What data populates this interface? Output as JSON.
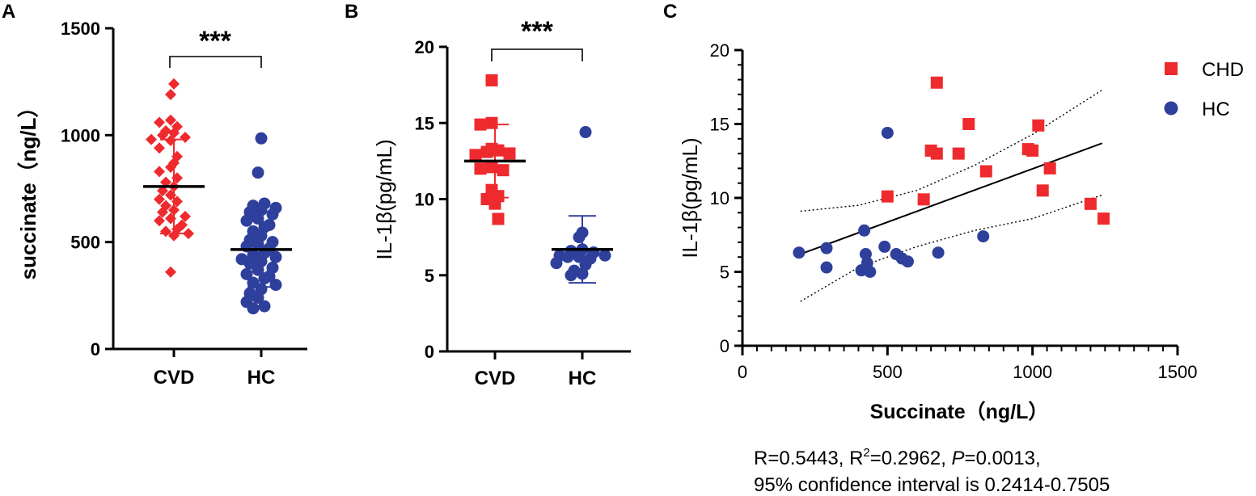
{
  "colors": {
    "cvd": "#ee2a2e",
    "hc": "#2e3f9c",
    "axis": "#000000"
  },
  "chart_data": [
    {
      "panel": "A",
      "type": "scatter",
      "subtype": "dot-plot with mean and SD",
      "title": "",
      "ylabel": "succinate（ng/L）",
      "xlabel": "",
      "ylim": [
        0,
        1500
      ],
      "yticks": [
        0,
        500,
        1000,
        1500
      ],
      "categories": [
        "CVD",
        "HC"
      ],
      "significance": "***",
      "series": [
        {
          "name": "CVD",
          "marker": "diamond",
          "mean": 760,
          "sd_low": 540,
          "sd_high": 980,
          "values": [
            1240,
            1190,
            1070,
            1060,
            1040,
            1020,
            1010,
            1000,
            990,
            980,
            975,
            940,
            900,
            870,
            850,
            830,
            800,
            780,
            760,
            740,
            720,
            700,
            690,
            670,
            650,
            640,
            620,
            610,
            600,
            580,
            560,
            550,
            540,
            530,
            360
          ]
        },
        {
          "name": "HC",
          "marker": "circle",
          "mean": 465,
          "sd_low": 290,
          "sd_high": 640,
          "values": [
            985,
            825,
            680,
            670,
            660,
            650,
            640,
            630,
            610,
            600,
            580,
            570,
            550,
            530,
            510,
            500,
            490,
            480,
            470,
            450,
            440,
            430,
            420,
            410,
            400,
            380,
            370,
            350,
            340,
            330,
            310,
            300,
            280,
            260,
            240,
            220,
            200,
            190
          ]
        }
      ]
    },
    {
      "panel": "B",
      "type": "scatter",
      "subtype": "dot-plot with mean and SD",
      "title": "",
      "ylabel": "IL-1β(pg/mL)",
      "xlabel": "",
      "ylim": [
        0,
        20
      ],
      "yticks": [
        0,
        5,
        10,
        15,
        20
      ],
      "categories": [
        "CVD",
        "HC"
      ],
      "significance": "***",
      "series": [
        {
          "name": "CVD",
          "marker": "square",
          "mean": 12.5,
          "sd_low": 10.1,
          "sd_high": 14.9,
          "values": [
            17.8,
            15.0,
            14.9,
            13.3,
            13.2,
            13.1,
            13.0,
            12.9,
            12.1,
            12.0,
            11.9,
            10.6,
            10.2,
            10.0,
            9.7,
            8.7
          ]
        },
        {
          "name": "HC",
          "marker": "circle",
          "mean": 6.7,
          "sd_low": 4.5,
          "sd_high": 8.9,
          "values": [
            14.4,
            7.8,
            7.5,
            6.7,
            6.6,
            6.5,
            6.3,
            6.3,
            6.2,
            6.2,
            6.1,
            5.8,
            5.7,
            5.3,
            5.1,
            5.0
          ]
        }
      ]
    },
    {
      "panel": "C",
      "type": "scatter",
      "title": "",
      "xlabel": "Succinate（ng/L）",
      "ylabel": "IL-1β(pg/mL)",
      "xlim": [
        0,
        1500
      ],
      "ylim": [
        0,
        20
      ],
      "xticks": [
        0,
        500,
        1000,
        1500
      ],
      "yticks": [
        0,
        5,
        10,
        15,
        20
      ],
      "legend": [
        "CHD",
        "HC"
      ],
      "legend_position": "top-right",
      "series": [
        {
          "name": "CHD",
          "marker": "square",
          "x": [
            670,
            780,
            650,
            670,
            745,
            1020,
            985,
            1000,
            840,
            1060,
            500,
            625,
            1035,
            1200,
            1245
          ],
          "y": [
            17.8,
            15.0,
            13.2,
            13.0,
            13.0,
            14.9,
            13.3,
            13.2,
            11.8,
            12.0,
            10.1,
            9.9,
            10.5,
            9.6,
            8.6
          ]
        },
        {
          "name": "HC",
          "marker": "circle",
          "x": [
            500,
            195,
            290,
            290,
            420,
            490,
            530,
            550,
            570,
            425,
            430,
            410,
            440,
            830,
            675
          ],
          "y": [
            14.4,
            6.3,
            6.6,
            5.3,
            7.8,
            6.7,
            6.2,
            5.9,
            5.7,
            6.2,
            5.6,
            5.1,
            5.0,
            7.4,
            6.3
          ]
        }
      ],
      "regression": {
        "x": [
          200,
          1240
        ],
        "y": [
          6.2,
          13.7
        ]
      },
      "confidence_band": {
        "x": [
          200,
          400,
          600,
          800,
          1000,
          1240
        ],
        "upper": [
          9.1,
          9.5,
          10.5,
          12.2,
          14.3,
          17.3
        ],
        "lower": [
          3.0,
          5.3,
          6.7,
          7.8,
          8.6,
          10.2
        ]
      },
      "stats_line1": {
        "prefix": "R=0.5443, R",
        "sup": "2",
        "middle": "=0.2962, ",
        "italic": "P",
        "suffix": "=0.0013,"
      },
      "stats_line2": "95% confidence interval is 0.2414-0.7505"
    }
  ]
}
